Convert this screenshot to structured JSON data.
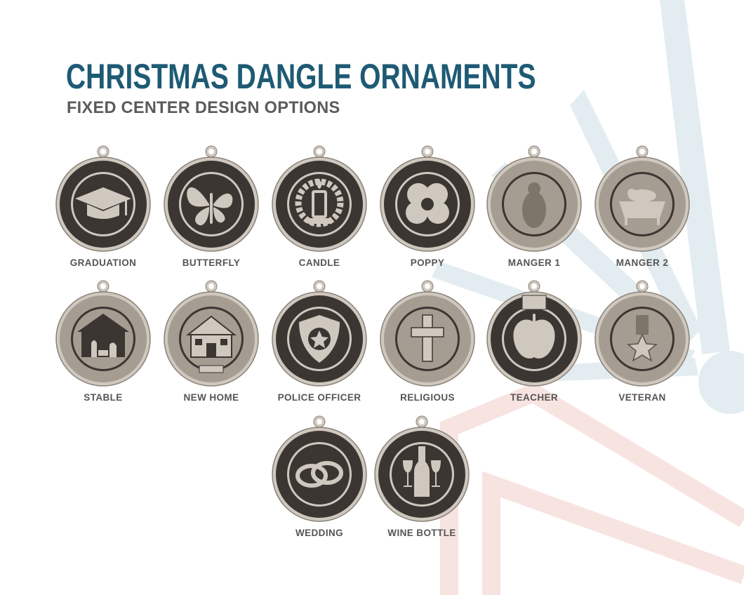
{
  "header": {
    "title": "CHRISTMAS DANGLE ORNAMENTS",
    "subtitle": "FIXED CENTER DESIGN OPTIONS"
  },
  "colors": {
    "title": "#1e5a74",
    "subtitle": "#5b5b5b",
    "wood_light": "#cfc8bf",
    "wood_dark": "#3b3632"
  },
  "ornaments": [
    {
      "label": "GRADUATION",
      "icon": "graduation-cap-icon"
    },
    {
      "label": "BUTTERFLY",
      "icon": "butterfly-icon"
    },
    {
      "label": "CANDLE",
      "icon": "candle-wreath-icon"
    },
    {
      "label": "POPPY",
      "icon": "poppy-flower-icon"
    },
    {
      "label": "MANGER 1",
      "icon": "swaddled-baby-icon"
    },
    {
      "label": "MANGER 2",
      "icon": "baby-in-manger-icon"
    },
    {
      "label": "STABLE",
      "icon": "nativity-stable-icon"
    },
    {
      "label": "NEW HOME",
      "icon": "house-icon"
    },
    {
      "label": "POLICE OFFICER",
      "icon": "police-badge-icon"
    },
    {
      "label": "RELIGIOUS",
      "icon": "cross-icon"
    },
    {
      "label": "TEACHER",
      "icon": "apple-icon"
    },
    {
      "label": "VETERAN",
      "icon": "medal-icon"
    },
    {
      "label": "WEDDING",
      "icon": "wedding-rings-icon"
    },
    {
      "label": "WINE BOTTLE",
      "icon": "wine-bottle-icon"
    }
  ]
}
